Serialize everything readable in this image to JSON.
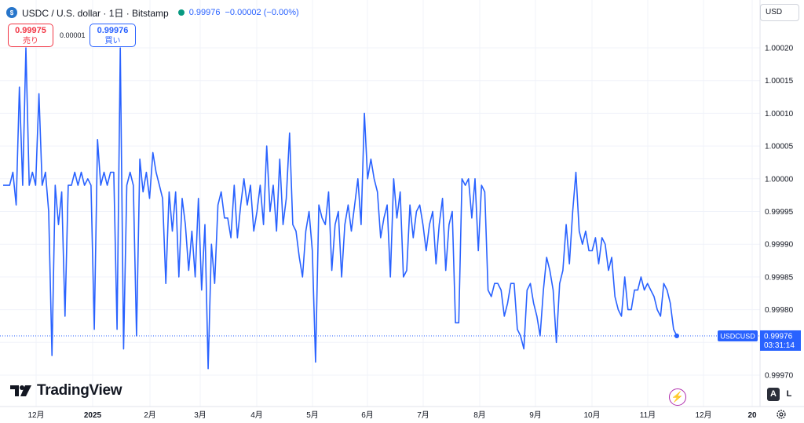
{
  "header": {
    "title": "USDC / U.S. dollar · 1日 · Bitstamp",
    "last_price": "0.99976",
    "change": "−0.00002 (−0.00%)"
  },
  "quotes": {
    "sell_value": "0.99975",
    "sell_label": "売り",
    "spread": "0.00001",
    "buy_value": "0.99976",
    "buy_label": "買い"
  },
  "toolbar": {
    "currency": "USD"
  },
  "branding": {
    "logo_text": "TradingView"
  },
  "scale_modes": {
    "auto": "A",
    "log": "L"
  },
  "price_marker": {
    "symbol": "USDCUSD",
    "price": "0.99976",
    "countdown": "03:31:14"
  },
  "colors": {
    "line": "#2962ff",
    "grid": "#f0f3fa",
    "axis_border": "#e0e3eb",
    "marker_bg": "#2962ff",
    "sell": "#f23645",
    "live_dot": "#089981"
  },
  "icons": [
    "usdc-coin-icon",
    "tradingview-logo-icon",
    "lightning-icon",
    "gear-icon"
  ],
  "chart_data": {
    "type": "line",
    "x_ticks": [
      "12月",
      "2025",
      "2月",
      "3月",
      "4月",
      "5月",
      "6月",
      "7月",
      "8月",
      "9月",
      "10月",
      "11月",
      "12月",
      "20"
    ],
    "y_ticks": [
      "1.00020",
      "1.00015",
      "1.00010",
      "1.00005",
      "1.00000",
      "0.99995",
      "0.99990",
      "0.99985",
      "0.99980",
      "0.99975",
      "0.99970"
    ],
    "ylim": [
      0.99968,
      1.00024
    ],
    "grid": true,
    "series": [
      {
        "values": [
          0.99999,
          0.99999,
          0.99999,
          1.00001,
          0.99996,
          1.00014,
          0.99999,
          1.0002,
          0.99999,
          1.00001,
          0.99999,
          1.00013,
          0.99999,
          1.00001,
          0.99995,
          0.99973,
          0.99999,
          0.99993,
          0.99998,
          0.99979,
          0.99999,
          0.99999,
          1.00001,
          0.99999,
          1.00001,
          0.99999,
          1.0,
          0.99999,
          0.99977,
          1.00006,
          0.99999,
          1.00001,
          0.99999,
          1.00001,
          1.00001,
          0.99977,
          1.0002,
          0.99974,
          0.99999,
          1.00001,
          0.99999,
          0.99976,
          1.00003,
          0.99998,
          1.00001,
          0.99997,
          1.00004,
          1.00001,
          0.99999,
          0.99997,
          0.99984,
          0.99998,
          0.99992,
          0.99998,
          0.99985,
          0.99997,
          0.99993,
          0.99986,
          0.99992,
          0.99985,
          0.99997,
          0.99983,
          0.99993,
          0.99971,
          0.9999,
          0.99984,
          0.99996,
          0.99998,
          0.99994,
          0.99994,
          0.99991,
          0.99999,
          0.99991,
          0.99996,
          1.0,
          0.99996,
          0.99999,
          0.99992,
          0.99995,
          0.99999,
          0.99993,
          1.00005,
          0.99995,
          0.99999,
          0.99992,
          1.00003,
          0.99993,
          0.99997,
          1.00007,
          0.99993,
          0.99992,
          0.99988,
          0.99985,
          0.99992,
          0.99995,
          0.99989,
          0.99972,
          0.99996,
          0.99994,
          0.99993,
          0.99998,
          0.99986,
          0.99993,
          0.99995,
          0.99985,
          0.99993,
          0.99996,
          0.99992,
          0.99996,
          1.0,
          0.99993,
          1.0001,
          1.0,
          1.00003,
          1.0,
          0.99998,
          0.99991,
          0.99994,
          0.99996,
          0.99985,
          1.0,
          0.99994,
          0.99998,
          0.99985,
          0.99986,
          0.99996,
          0.99991,
          0.99995,
          0.99996,
          0.99993,
          0.99989,
          0.99993,
          0.99995,
          0.99987,
          0.99993,
          0.99997,
          0.99986,
          0.99993,
          0.99995,
          0.99978,
          0.99978,
          1.0,
          0.99999,
          1.0,
          0.99994,
          1.0,
          0.99989,
          0.99999,
          0.99998,
          0.99983,
          0.99982,
          0.99984,
          0.99984,
          0.99983,
          0.99979,
          0.99981,
          0.99984,
          0.99984,
          0.99977,
          0.99976,
          0.99974,
          0.99983,
          0.99984,
          0.99981,
          0.99979,
          0.99976,
          0.99983,
          0.99988,
          0.99986,
          0.99983,
          0.99975,
          0.99984,
          0.99986,
          0.99993,
          0.99987,
          0.99995,
          1.00001,
          0.99992,
          0.9999,
          0.99992,
          0.99989,
          0.99989,
          0.99991,
          0.99987,
          0.99991,
          0.9999,
          0.99986,
          0.99988,
          0.99982,
          0.9998,
          0.99979,
          0.99985,
          0.9998,
          0.9998,
          0.99983,
          0.99983,
          0.99985,
          0.99983,
          0.99984,
          0.99983,
          0.99982,
          0.9998,
          0.99979,
          0.99984,
          0.99983,
          0.99981,
          0.99977,
          0.99976
        ]
      }
    ]
  }
}
